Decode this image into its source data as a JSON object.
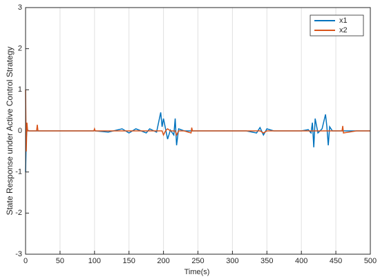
{
  "chart_data": {
    "type": "line",
    "xlabel": "Time(s)",
    "ylabel": "State Response under Active Control Strategy",
    "xlim": [
      0,
      500
    ],
    "xticks": [
      0,
      50,
      100,
      150,
      200,
      250,
      300,
      350,
      400,
      450,
      500
    ],
    "ylim": [
      -3,
      3
    ],
    "yticks": [
      -3,
      -2,
      -1,
      0,
      1,
      2,
      3
    ],
    "grid": "x",
    "legend": "top-right",
    "x": [
      0,
      1,
      2,
      3,
      5,
      10,
      16,
      17,
      18,
      25,
      40,
      60,
      80,
      99,
      100,
      101,
      120,
      140,
      150,
      160,
      175,
      180,
      190,
      196,
      198,
      200,
      203,
      206,
      210,
      215,
      217,
      219,
      222,
      230,
      240,
      241,
      242,
      260,
      300,
      320,
      335,
      340,
      345,
      350,
      360,
      380,
      400,
      410,
      414,
      416,
      418,
      420,
      424,
      430,
      435,
      437,
      439,
      441,
      445,
      455,
      459,
      460,
      461,
      480,
      500
    ],
    "series": [
      {
        "name": "x1",
        "color": "#0072BD",
        "values": [
          -1,
          -0.2,
          0,
          0.02,
          0,
          0,
          0,
          0,
          0,
          0,
          0,
          0,
          0,
          0,
          0.02,
          0,
          -0.03,
          0.05,
          -0.05,
          0.05,
          -0.05,
          0.05,
          -0.03,
          0.45,
          0.1,
          0.3,
          0.05,
          -0.2,
          0.02,
          -0.1,
          0.3,
          -0.35,
          0.05,
          0,
          0,
          0,
          0,
          0,
          0,
          0,
          -0.05,
          0.08,
          -0.1,
          0.05,
          0,
          0,
          0,
          0.03,
          -0.05,
          0.2,
          -0.4,
          0.3,
          -0.05,
          0.05,
          0.4,
          0.1,
          -0.35,
          0.1,
          0,
          0,
          0,
          0,
          0,
          0,
          0
        ]
      },
      {
        "name": "x2",
        "color": "#D95319",
        "values": [
          1,
          -0.5,
          0.2,
          0,
          0,
          0,
          0,
          0.15,
          0,
          0,
          0,
          0,
          0,
          0,
          0.05,
          0,
          0,
          0,
          0,
          0,
          0,
          0,
          0,
          0,
          0,
          -0.1,
          0,
          0.05,
          0,
          0,
          0,
          -0.1,
          0,
          0,
          -0.05,
          0.08,
          0,
          0,
          0,
          0,
          0,
          0,
          -0.05,
          0,
          0,
          0,
          0,
          0,
          0,
          0,
          0,
          0,
          0,
          0,
          0,
          0,
          0,
          0,
          0,
          0,
          0,
          0.12,
          -0.05,
          0,
          0
        ]
      }
    ]
  }
}
